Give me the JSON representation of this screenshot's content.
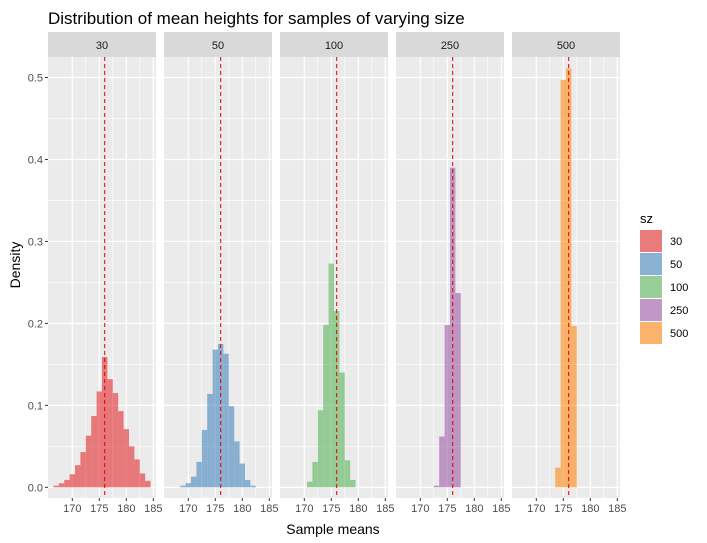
{
  "chart_data": {
    "type": "bar",
    "title": "Distribution of mean heights for samples of varying size",
    "xlabel": "Sample means",
    "ylabel": "Density",
    "xlim": [
      165.5,
      185.5
    ],
    "ylim": [
      -0.013,
      0.525
    ],
    "x_ticks": [
      170,
      175,
      180,
      185
    ],
    "y_ticks": [
      0.0,
      0.1,
      0.2,
      0.3,
      0.4,
      0.5
    ],
    "y_tick_labels": [
      "0.0",
      "0.1",
      "0.2",
      "0.3",
      "0.4",
      "0.5"
    ],
    "grid": true,
    "bin_width": 1,
    "mean_line": 176,
    "legend": {
      "title": "sz",
      "position": "right"
    },
    "series": [
      {
        "name": "30",
        "color": "#E41A1C",
        "x": [
          167,
          168,
          169,
          170,
          171,
          172,
          173,
          174,
          175,
          176,
          177,
          178,
          179,
          180,
          181,
          182,
          183,
          184
        ],
        "values": [
          0.002,
          0.005,
          0.009,
          0.016,
          0.027,
          0.043,
          0.063,
          0.087,
          0.117,
          0.159,
          0.132,
          0.115,
          0.093,
          0.071,
          0.05,
          0.034,
          0.017,
          0.008
        ]
      },
      {
        "name": "50",
        "color": "#377EB8",
        "x": [
          169,
          170,
          171,
          172,
          173,
          174,
          175,
          176,
          177,
          178,
          179,
          180,
          181,
          182
        ],
        "values": [
          0.002,
          0.005,
          0.013,
          0.031,
          0.07,
          0.114,
          0.168,
          0.175,
          0.163,
          0.099,
          0.056,
          0.029,
          0.009,
          0.002
        ]
      },
      {
        "name": "100",
        "color": "#4DAF4A",
        "x": [
          171,
          172,
          173,
          174,
          175,
          176,
          177,
          178,
          179
        ],
        "values": [
          0.007,
          0.031,
          0.094,
          0.198,
          0.273,
          0.215,
          0.14,
          0.033,
          0.009
        ]
      },
      {
        "name": "250",
        "color": "#984EA3",
        "x": [
          173,
          174,
          175,
          176,
          177
        ],
        "values": [
          0.002,
          0.062,
          0.198,
          0.39,
          0.237
        ]
      },
      {
        "name": "500",
        "color": "#FF7F00",
        "x": [
          174,
          175,
          176,
          177
        ],
        "values": [
          0.024,
          0.497,
          0.511,
          0.197
        ]
      }
    ]
  }
}
